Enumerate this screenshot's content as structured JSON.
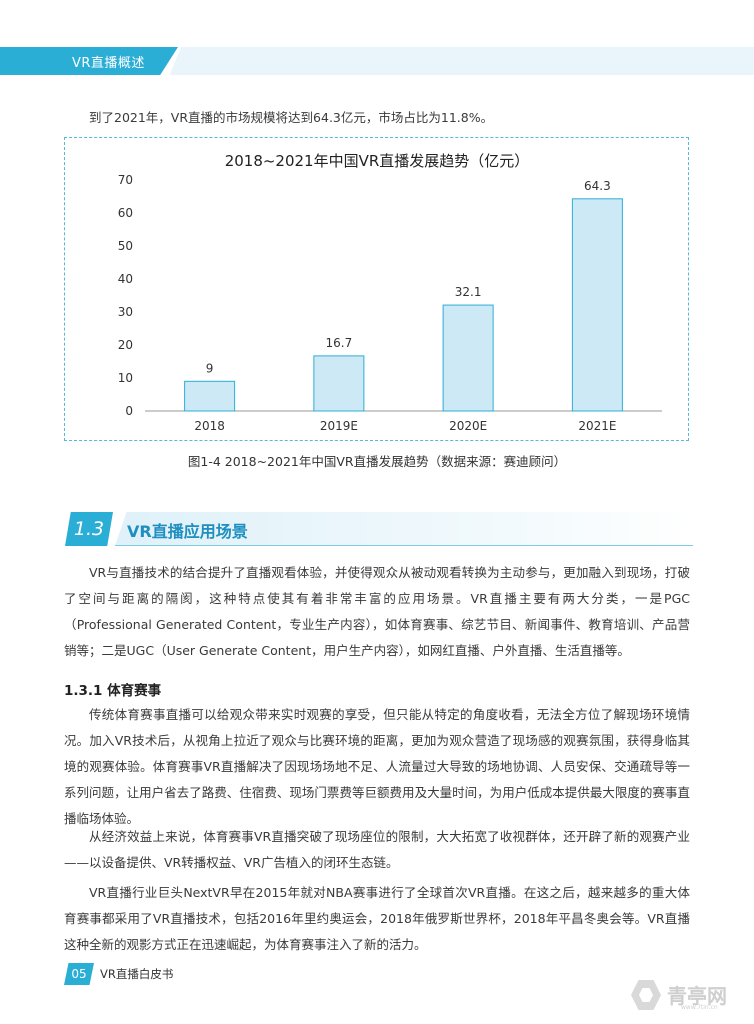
{
  "header": {
    "section_label": "VR直播概述"
  },
  "intro": "到了2021年，VR直播的市场规模将达到64.3亿元，市场占比为11.8%。",
  "chart_data": {
    "type": "bar",
    "title": "2018~2021年中国VR直播发展趋势（亿元）",
    "categories": [
      "2018",
      "2019E",
      "2020E",
      "2021E"
    ],
    "values": [
      9,
      16.7,
      32.1,
      64.3
    ],
    "value_labels": [
      "9",
      "16.7",
      "32.1",
      "64.3"
    ],
    "ylim": [
      0,
      70
    ],
    "yticks": [
      "0",
      "10",
      "20",
      "30",
      "40",
      "50",
      "60",
      "70"
    ],
    "grid": false,
    "bar_color": "#cde9f5",
    "bar_stroke": "#2aaed6"
  },
  "caption": "图1-4 2018~2021年中国VR直播发展趋势（数据来源：赛迪顾问）",
  "section": {
    "number": "1.3",
    "title": "VR直播应用场景"
  },
  "section_paras": [
    "VR与直播技术的结合提升了直播观看体验，并使得观众从被动观看转换为主动参与，更加融入到现场，打破了空间与距离的隔阂，这种特点使其有着非常丰富的应用场景。VR直播主要有两大分类，一是PGC（Professional Generated Content，专业生产内容），如体育赛事、综艺节目、新闻事件、教育培训、产品营销等；二是UGC（User Generate Content，用户生产内容），如网红直播、户外直播、生活直播等。"
  ],
  "subsection": {
    "title": "1.3.1 体育赛事"
  },
  "sub_paras": [
    "传统体育赛事直播可以给观众带来实时观赛的享受，但只能从特定的角度收看，无法全方位了解现场环境情况。加入VR技术后，从视角上拉近了观众与比赛环境的距离，更加为观众营造了现场感的观赛氛围，获得身临其境的观赛体验。体育赛事VR直播解决了因现场场地不足、人流量过大导致的场地协调、人员安保、交通疏导等一系列问题，让用户省去了路费、住宿费、现场门票费等巨额费用及大量时间，为用户低成本提供最大限度的赛事直播临场体验。",
    "从经济效益上来说，体育赛事VR直播突破了现场座位的限制，大大拓宽了收视群体，还开辟了新的观赛产业——以设备提供、VR转播权益、VR广告植入的闭环生态链。",
    "VR直播行业巨头NextVR早在2015年就对NBA赛事进行了全球首次VR直播。在这之后，越来越多的重大体育赛事都采用了VR直播技术，包括2016年里约奥运会，2018年俄罗斯世界杯，2018年平昌冬奥会等。VR直播这种全新的观影方式正在迅速崛起，为体育赛事注入了新的活力。"
  ],
  "footer": {
    "page": "05",
    "title": "VR直播白皮书"
  },
  "watermark": {
    "text": "青亭网",
    "sub": "www.7tin.cn"
  }
}
